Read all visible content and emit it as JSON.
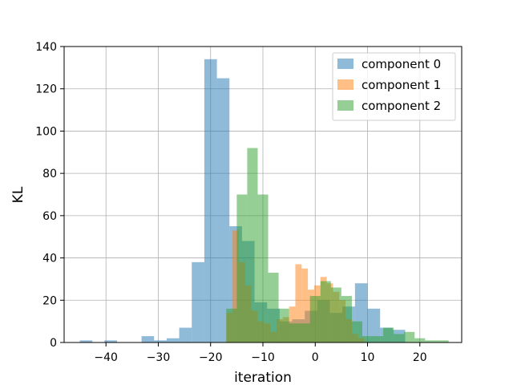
{
  "chart_data": {
    "type": "bar",
    "xlabel": "iteration",
    "ylabel": "KL",
    "xlim": [
      -48,
      28
    ],
    "ylim": [
      0,
      140
    ],
    "xticks": [
      -40,
      -30,
      -20,
      -10,
      0,
      10,
      20
    ],
    "yticks": [
      0,
      20,
      40,
      60,
      80,
      100,
      120,
      140
    ],
    "xtick_labels": [
      "−40",
      "−30",
      "−20",
      "−10",
      "0",
      "10",
      "20"
    ],
    "ytick_labels": [
      "0",
      "20",
      "40",
      "60",
      "80",
      "100",
      "120",
      "140"
    ],
    "grid": true,
    "legend_position": "top-right",
    "bar_alpha": 0.5,
    "series": [
      {
        "name": "component 0",
        "color": "#1f77b4",
        "bins": [
          {
            "x0": -45.0,
            "x1": -42.6,
            "y": 1
          },
          {
            "x0": -40.3,
            "x1": -37.9,
            "y": 1
          },
          {
            "x0": -33.2,
            "x1": -30.8,
            "y": 3
          },
          {
            "x0": -30.8,
            "x1": -28.4,
            "y": 1
          },
          {
            "x0": -28.4,
            "x1": -26.0,
            "y": 2
          },
          {
            "x0": -26.0,
            "x1": -23.6,
            "y": 7
          },
          {
            "x0": -23.6,
            "x1": -21.2,
            "y": 38
          },
          {
            "x0": -21.2,
            "x1": -18.8,
            "y": 134
          },
          {
            "x0": -18.8,
            "x1": -16.4,
            "y": 125
          },
          {
            "x0": -16.4,
            "x1": -14.0,
            "y": 55
          },
          {
            "x0": -14.0,
            "x1": -11.6,
            "y": 48
          },
          {
            "x0": -11.6,
            "x1": -9.2,
            "y": 19
          },
          {
            "x0": -9.2,
            "x1": -6.8,
            "y": 16
          },
          {
            "x0": -6.8,
            "x1": -4.4,
            "y": 10
          },
          {
            "x0": -4.4,
            "x1": -2.0,
            "y": 11
          },
          {
            "x0": -2.0,
            "x1": 0.4,
            "y": 15
          },
          {
            "x0": 0.4,
            "x1": 2.8,
            "y": 20
          },
          {
            "x0": 2.8,
            "x1": 5.2,
            "y": 14
          },
          {
            "x0": 5.2,
            "x1": 7.6,
            "y": 17
          },
          {
            "x0": 7.6,
            "x1": 10.0,
            "y": 28
          },
          {
            "x0": 10.0,
            "x1": 12.4,
            "y": 16
          },
          {
            "x0": 12.4,
            "x1": 14.8,
            "y": 7
          },
          {
            "x0": 14.8,
            "x1": 17.2,
            "y": 6
          }
        ]
      },
      {
        "name": "component 1",
        "color": "#ff7f0e",
        "bins": [
          {
            "x0": -17.0,
            "x1": -15.8,
            "y": 14
          },
          {
            "x0": -15.8,
            "x1": -14.6,
            "y": 53
          },
          {
            "x0": -14.6,
            "x1": -13.4,
            "y": 38
          },
          {
            "x0": -13.4,
            "x1": -12.2,
            "y": 27
          },
          {
            "x0": -12.2,
            "x1": -11.0,
            "y": 15
          },
          {
            "x0": -11.0,
            "x1": -9.8,
            "y": 10
          },
          {
            "x0": -9.8,
            "x1": -8.6,
            "y": 9
          },
          {
            "x0": -8.6,
            "x1": -7.4,
            "y": 5
          },
          {
            "x0": -7.4,
            "x1": -6.2,
            "y": 11
          },
          {
            "x0": -6.2,
            "x1": -5.0,
            "y": 12
          },
          {
            "x0": -5.0,
            "x1": -3.8,
            "y": 17
          },
          {
            "x0": -3.8,
            "x1": -2.6,
            "y": 37
          },
          {
            "x0": -2.6,
            "x1": -1.4,
            "y": 35
          },
          {
            "x0": -1.4,
            "x1": -0.2,
            "y": 25
          },
          {
            "x0": -0.2,
            "x1": 1.0,
            "y": 27
          },
          {
            "x0": 1.0,
            "x1": 2.2,
            "y": 31
          },
          {
            "x0": 2.2,
            "x1": 3.4,
            "y": 28
          },
          {
            "x0": 3.4,
            "x1": 4.6,
            "y": 24
          },
          {
            "x0": 4.6,
            "x1": 5.8,
            "y": 20
          },
          {
            "x0": 5.8,
            "x1": 7.0,
            "y": 11
          },
          {
            "x0": 7.0,
            "x1": 8.2,
            "y": 4
          },
          {
            "x0": 8.2,
            "x1": 9.4,
            "y": 2
          }
        ]
      },
      {
        "name": "component 2",
        "color": "#2ca02c",
        "bins": [
          {
            "x0": -17.0,
            "x1": -15.0,
            "y": 16
          },
          {
            "x0": -15.0,
            "x1": -13.0,
            "y": 70
          },
          {
            "x0": -13.0,
            "x1": -11.0,
            "y": 92
          },
          {
            "x0": -11.0,
            "x1": -9.0,
            "y": 70
          },
          {
            "x0": -9.0,
            "x1": -7.0,
            "y": 33
          },
          {
            "x0": -7.0,
            "x1": -5.0,
            "y": 16
          },
          {
            "x0": -5.0,
            "x1": -3.0,
            "y": 9
          },
          {
            "x0": -3.0,
            "x1": -1.0,
            "y": 9
          },
          {
            "x0": -1.0,
            "x1": 1.0,
            "y": 22
          },
          {
            "x0": 1.0,
            "x1": 3.0,
            "y": 29
          },
          {
            "x0": 3.0,
            "x1": 5.0,
            "y": 26
          },
          {
            "x0": 5.0,
            "x1": 7.0,
            "y": 22
          },
          {
            "x0": 7.0,
            "x1": 9.0,
            "y": 10
          },
          {
            "x0": 9.0,
            "x1": 11.0,
            "y": 3
          },
          {
            "x0": 11.0,
            "x1": 13.0,
            "y": 3
          },
          {
            "x0": 13.0,
            "x1": 15.0,
            "y": 7
          },
          {
            "x0": 15.0,
            "x1": 17.0,
            "y": 4
          },
          {
            "x0": 17.0,
            "x1": 19.0,
            "y": 5
          },
          {
            "x0": 19.0,
            "x1": 21.0,
            "y": 2
          },
          {
            "x0": 21.0,
            "x1": 23.0,
            "y": 1
          },
          {
            "x0": 23.0,
            "x1": 25.5,
            "y": 1
          }
        ]
      }
    ]
  }
}
